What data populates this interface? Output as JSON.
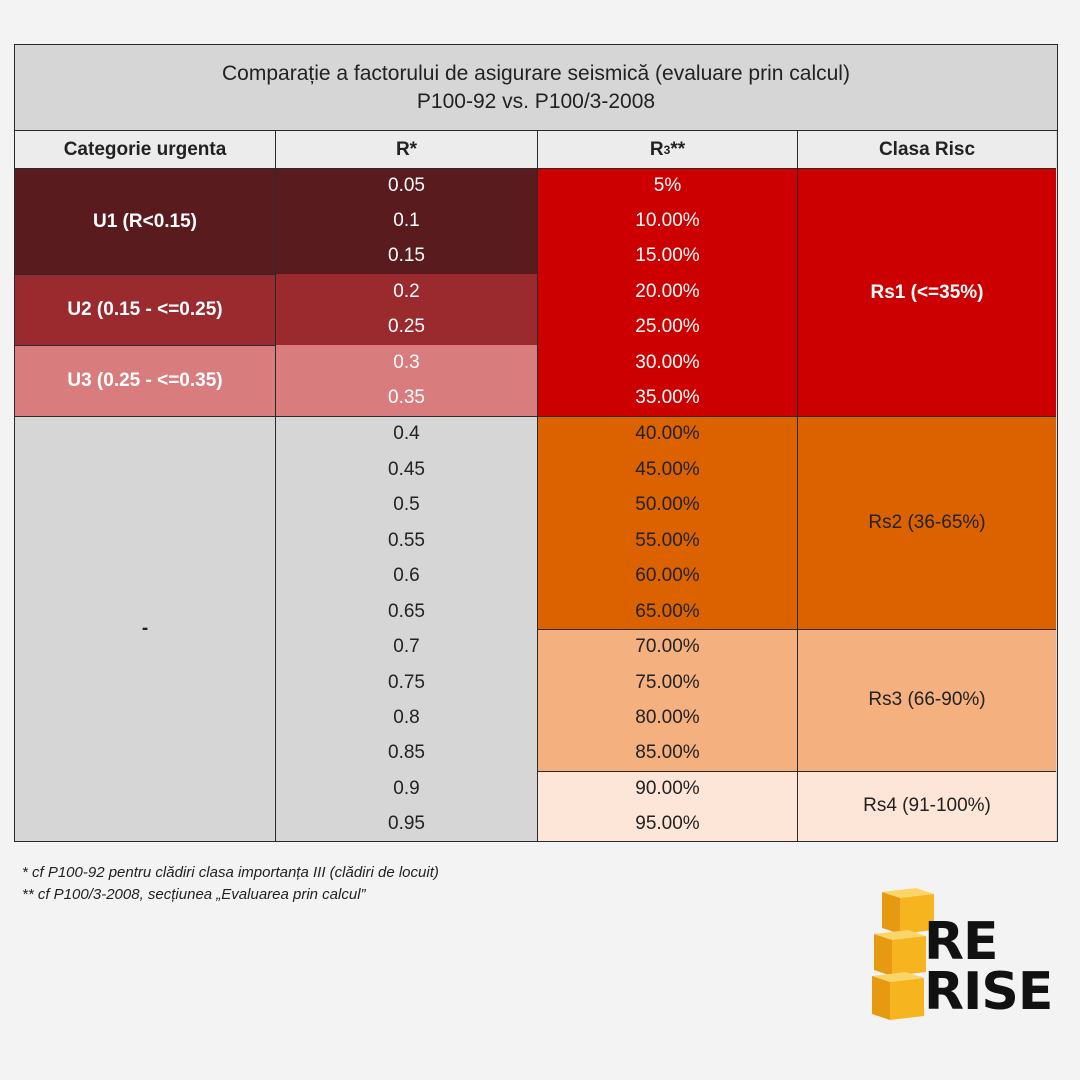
{
  "title": {
    "line1": "Comparație a factorului de asigurare seismică (evaluare prin calcul)",
    "line2": "P100-92  vs.  P100/3-2008"
  },
  "headers": {
    "categorie": "Categorie urgenta",
    "r": "R*",
    "r3_main": "R",
    "r3_sub": "3",
    "r3_suffix": "**",
    "clasa": "Clasa Risc"
  },
  "urgency": [
    {
      "label": "U1 (R<0.15)"
    },
    {
      "label": "U2 (0.15 - <=0.25)"
    },
    {
      "label": "U3 (0.25 - <=0.35)"
    },
    {
      "label": "-"
    }
  ],
  "rows": [
    {
      "r": "0.05",
      "r3": "5%"
    },
    {
      "r": "0.1",
      "r3": "10.00%"
    },
    {
      "r": "0.15",
      "r3": "15.00%"
    },
    {
      "r": "0.2",
      "r3": "20.00%"
    },
    {
      "r": "0.25",
      "r3": "25.00%"
    },
    {
      "r": "0.3",
      "r3": "30.00%"
    },
    {
      "r": "0.35",
      "r3": "35.00%"
    },
    {
      "r": "0.4",
      "r3": "40.00%"
    },
    {
      "r": "0.45",
      "r3": "45.00%"
    },
    {
      "r": "0.5",
      "r3": "50.00%"
    },
    {
      "r": "0.55",
      "r3": "55.00%"
    },
    {
      "r": "0.6",
      "r3": "60.00%"
    },
    {
      "r": "0.65",
      "r3": "65.00%"
    },
    {
      "r": "0.7",
      "r3": "70.00%"
    },
    {
      "r": "0.75",
      "r3": "75.00%"
    },
    {
      "r": "0.8",
      "r3": "80.00%"
    },
    {
      "r": "0.85",
      "r3": "85.00%"
    },
    {
      "r": "0.9",
      "r3": "90.00%"
    },
    {
      "r": "0.95",
      "r3": "95.00%"
    }
  ],
  "risk_classes": [
    {
      "label": "Rs1 (<=35%)"
    },
    {
      "label": "Rs2 (36-65%)"
    },
    {
      "label": "Rs3 (66-90%)"
    },
    {
      "label": "Rs4 (91-100%)"
    }
  ],
  "footnotes": {
    "note1": "*  cf P100-92 pentru clădiri clasa importanța III (clădiri de locuit)",
    "note2": "** cf P100/3-2008, secțiunea „Evaluarea prin calcul”"
  },
  "logo": {
    "line1": "RE",
    "line2": "RISE"
  },
  "colors": {
    "u1": "#5a1b1f",
    "u2": "#9a2a2e",
    "u3": "#d87c7e",
    "rs1": "#cc0000",
    "rs2": "#dc6200",
    "rs3": "#f4b07e",
    "rs4": "#fde6d8",
    "logo_accent": "#f6b51e"
  }
}
